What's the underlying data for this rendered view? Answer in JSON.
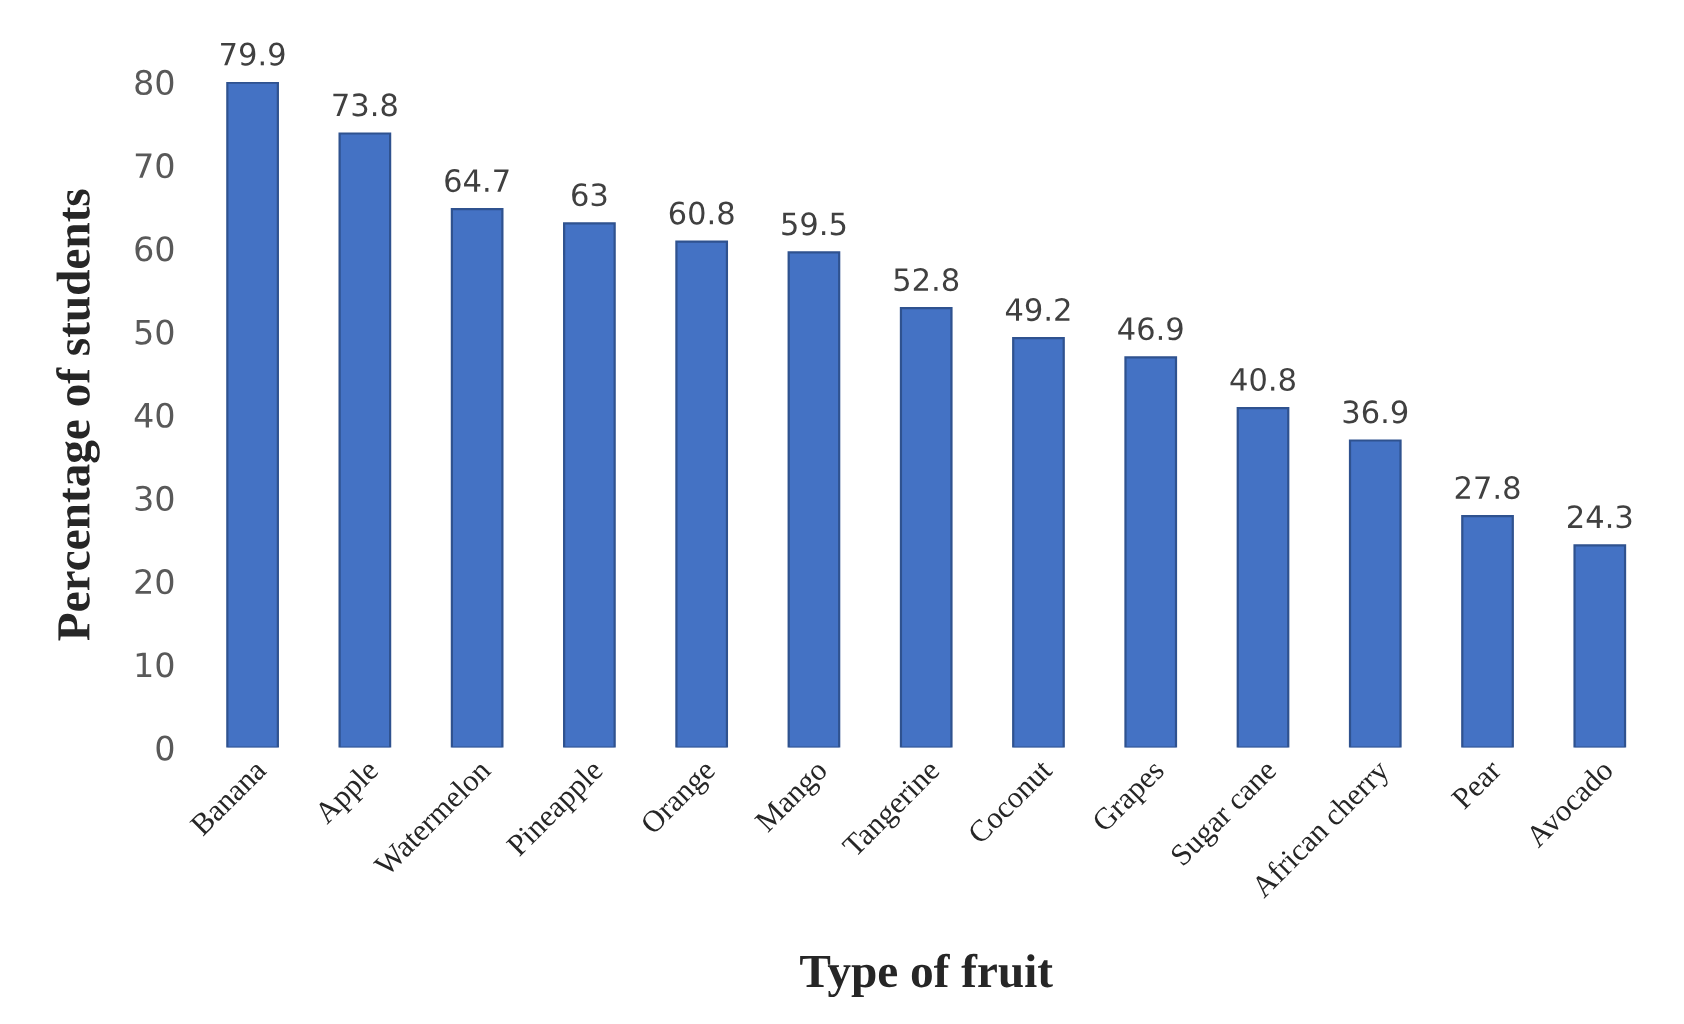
{
  "chart_data": {
    "type": "bar",
    "xlabel": "Type of fruit",
    "ylabel": "Percentage of students",
    "categories": [
      "Banana",
      "Apple",
      "Watermelon",
      "Pineapple",
      "Orange",
      "Mango",
      "Tangerine",
      "Coconut",
      "Grapes",
      "Sugar cane",
      "African cherry",
      "Pear",
      "Avocado"
    ],
    "values": [
      79.9,
      73.8,
      64.7,
      63,
      60.8,
      59.5,
      52.8,
      49.2,
      46.9,
      40.8,
      36.9,
      27.8,
      24.3
    ],
    "color": "#4472c4",
    "ylim": [
      0,
      80
    ],
    "yticks": [
      0,
      10,
      20,
      30,
      40,
      50,
      60,
      70,
      80
    ],
    "grid": false,
    "data_labels": true
  }
}
